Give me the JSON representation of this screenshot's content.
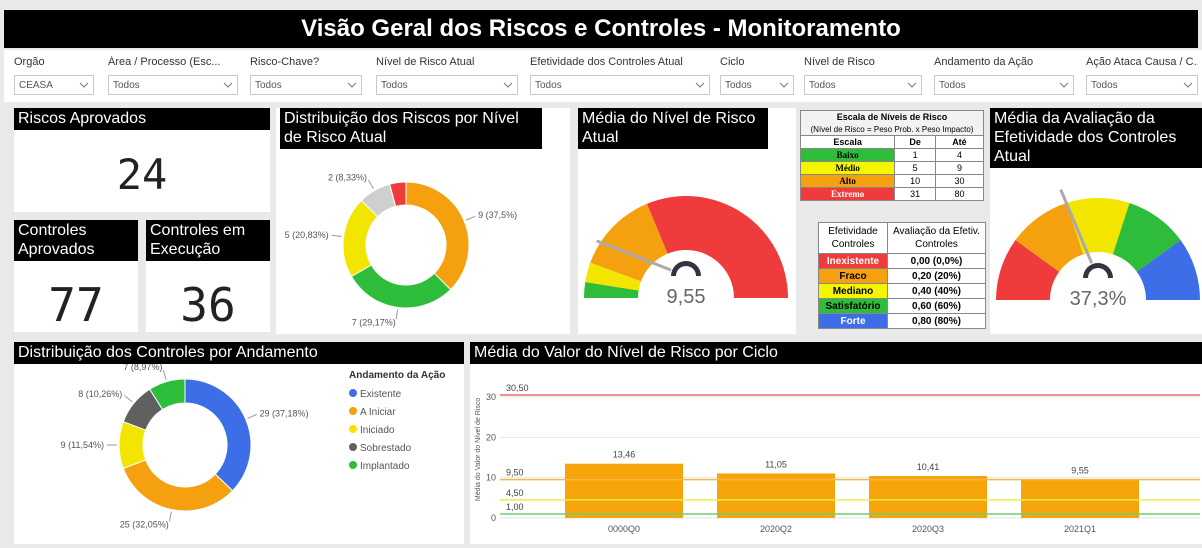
{
  "header": {
    "title": "Visão Geral dos Riscos e Controles - Monitoramento"
  },
  "filters": [
    {
      "label": "Orgão",
      "value": "CEASA"
    },
    {
      "label": "Área / Processo (Esc...",
      "value": "Todos"
    },
    {
      "label": "Risco-Chave?",
      "value": "Todos"
    },
    {
      "label": "Nível de Risco Atual",
      "value": "Todos"
    },
    {
      "label": "Efetividade dos Controles Atual",
      "value": "Todos"
    },
    {
      "label": "Ciclo",
      "value": "Todos"
    },
    {
      "label": "Nível de Risco",
      "value": "Todos"
    },
    {
      "label": "Andamento da Ação",
      "value": "Todos"
    },
    {
      "label": "Ação Ataca Causa / C...",
      "value": "Todos"
    }
  ],
  "kpis": [
    {
      "title": "Riscos Aprovados",
      "value": 24
    },
    {
      "title": "Controles Aprovados",
      "value": 77
    },
    {
      "title": "Controles em Execução",
      "value": 36
    }
  ],
  "chart_data": [
    {
      "type": "donut",
      "title": "Distribuição dos Riscos por Nível de Risco Atual",
      "values": [
        9,
        7,
        5,
        2,
        1
      ],
      "value_labels": [
        "9 (37,5%)",
        "7 (29,17%)",
        "5 (20,83%)",
        "2 (8,33%)",
        null
      ],
      "colors": [
        "#f5a00f",
        "#2ebd3a",
        "#f2e600",
        "#cfcfcf",
        "#ef3b3b"
      ]
    },
    {
      "type": "gauge",
      "title": "Média do Nível de Risco Atual",
      "value": 9.55,
      "value_label": "9,55",
      "ylim": [
        0,
        80
      ],
      "bands": [
        {
          "to": 4,
          "color": "#2ebd3a"
        },
        {
          "to": 9,
          "color": "#f2e600"
        },
        {
          "to": 30,
          "color": "#f5a00f"
        },
        {
          "to": 80,
          "color": "#ef3b3b"
        }
      ]
    },
    {
      "type": "gauge",
      "title": "Média da Avaliação da Efetividade dos Controles Atual",
      "value": 37.3,
      "value_label": "37,3%",
      "ylim": [
        0,
        100
      ],
      "bands": [
        {
          "to": 20,
          "color": "#ef3b3b"
        },
        {
          "to": 40,
          "color": "#f5a00f"
        },
        {
          "to": 60,
          "color": "#f2e600"
        },
        {
          "to": 80,
          "color": "#2ebd3a"
        },
        {
          "to": 100,
          "color": "#3d6ee8"
        }
      ]
    },
    {
      "type": "donut",
      "title": "Distribuição dos Controles por Andamento",
      "legend_title": "Andamento da Ação",
      "categories": [
        "Existente",
        "A Iniciar",
        "Iniciado",
        "Sobrestado",
        "Implantado"
      ],
      "values": [
        29,
        25,
        9,
        8,
        7
      ],
      "value_labels": [
        "29 (37,18%)",
        "25 (32,05%)",
        "9 (11,54%)",
        "8 (10,26%)",
        "7 (8,97%)"
      ],
      "colors": [
        "#3d6ee8",
        "#f5a00f",
        "#f2e600",
        "#606060",
        "#2ebd3a"
      ],
      "legend": "right"
    },
    {
      "type": "bar",
      "title": "Média do Valor do Nível de Risco por Ciclo",
      "y_label": "Média do Valor do Nível de Risco",
      "categories": [
        "0000Q0",
        "2020Q2",
        "2020Q3",
        "2021Q1"
      ],
      "values": [
        13.46,
        11.05,
        10.41,
        9.55
      ],
      "value_labels": [
        "13,46",
        "11,05",
        "10,41",
        "9,55"
      ],
      "color": "#f5a40a",
      "ylim": [
        0,
        34
      ],
      "yticks": [
        0,
        10,
        20,
        30
      ],
      "grid": true,
      "reference_lines": [
        {
          "value": 30.5,
          "label": "30,50",
          "color": "#ef6a6a"
        },
        {
          "value": 9.5,
          "label": "9,50",
          "color": "#f5b54a"
        },
        {
          "value": 4.5,
          "label": "4,50",
          "color": "#eee94a"
        },
        {
          "value": 1,
          "label": "1,00",
          "color": "#6fd06f"
        }
      ]
    }
  ],
  "tables": {
    "scale": {
      "title": "Escala de Níveis de Risco",
      "subtitle": "(Nível de Risco = Peso Prob. x Peso Impacto)",
      "headers": [
        "Escala",
        "De",
        "Até"
      ],
      "rows": [
        {
          "name": "Baixo",
          "from": 1,
          "to": 4,
          "color": "#2ebd3a"
        },
        {
          "name": "Médio",
          "from": 5,
          "to": 9,
          "color": "#f5f500"
        },
        {
          "name": "Alto",
          "from": 10,
          "to": 30,
          "color": "#f5a00f"
        },
        {
          "name": "Extremo",
          "from": 31,
          "to": 80,
          "color": "#ef3b3b"
        }
      ]
    },
    "effectiveness": {
      "headers": [
        "Efetividade Controles",
        "Avaliação da Efetiv. Controles"
      ],
      "rows": [
        {
          "name": "Inexistente",
          "value": "0,00 (0,0%)",
          "color": "#ef3b3b"
        },
        {
          "name": "Fraco",
          "value": "0,20 (20%)",
          "color": "#f5a00f"
        },
        {
          "name": "Mediano",
          "value": "0,40 (40%)",
          "color": "#f5f500"
        },
        {
          "name": "Satisfatório",
          "value": "0,60 (60%)",
          "color": "#2ebd3a"
        },
        {
          "name": "Forte",
          "value": "0,80 (80%)",
          "color": "#3d6ee8"
        }
      ]
    }
  }
}
